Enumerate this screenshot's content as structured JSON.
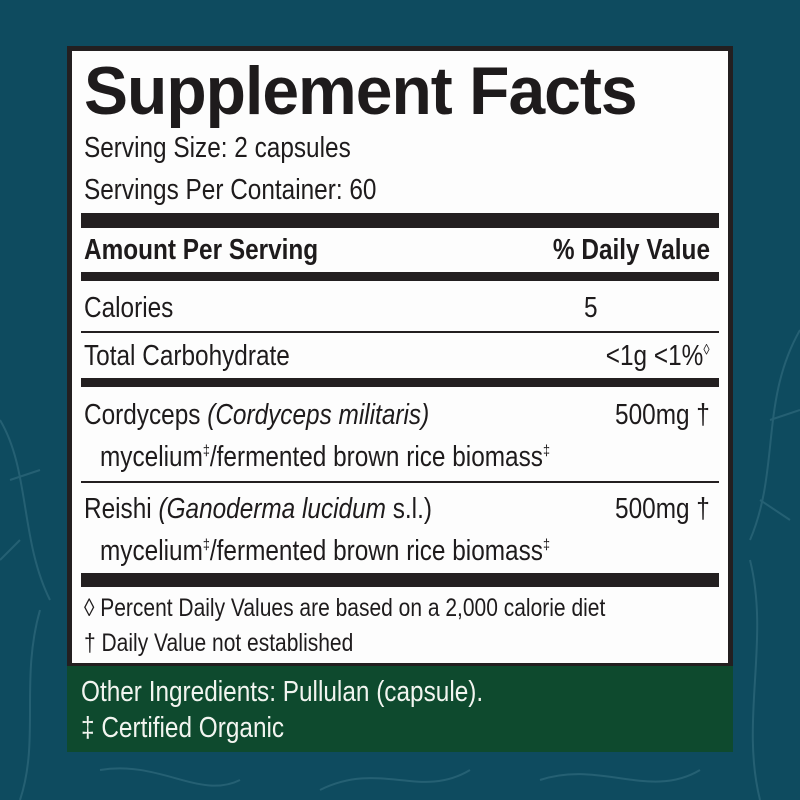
{
  "colors": {
    "background": "#0e4b5f",
    "label_bg": "#fdfdfd",
    "rule": "#231f20",
    "other_panel": "#0e4a2e"
  },
  "title": "Supplement Facts",
  "serving_size": "Serving Size: 2 capsules",
  "servings_per_container": "Servings Per Container: 60",
  "header": {
    "amount": "Amount Per Serving",
    "dv": "% Daily Value"
  },
  "rows": [
    {
      "name": "Calories",
      "amount": "5"
    },
    {
      "name": "Total Carbohydrate",
      "amount": "<1g",
      "dv": "<1%",
      "mark": "◊"
    }
  ],
  "ingredients": [
    {
      "name": "Cordyceps",
      "latin": "(Cordyceps militaris)",
      "suffix": "",
      "amount": "500mg †",
      "source_a": "mycelium",
      "mark": "‡",
      "source_b": "/fermented brown rice biomass"
    },
    {
      "name": "Reishi",
      "latin": "(Ganoderma lucidum",
      "suffix": " s.l.)",
      "amount": "500mg †",
      "source_a": "mycelium",
      "mark": "‡",
      "source_b": "/fermented brown rice biomass"
    }
  ],
  "footnotes": [
    "◊ Percent Daily Values are based on a 2,000 calorie diet",
    "† Daily Value not established"
  ],
  "other_ingredients": "Other Ingredients: Pullulan (capsule).",
  "organic_note": "‡ Certified Organic"
}
